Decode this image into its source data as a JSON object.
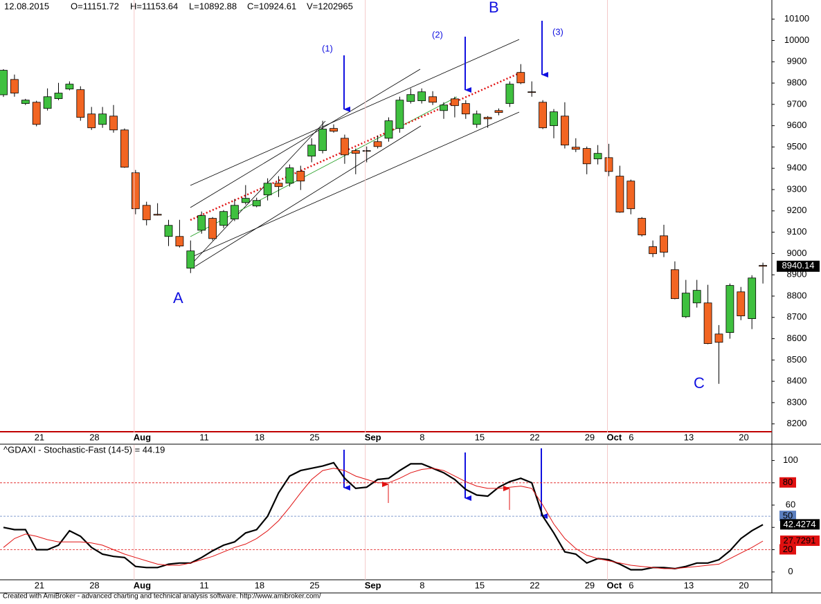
{
  "header": {
    "date": "12.08.2015",
    "open": "O=11151.72",
    "high": "H=11153.64",
    "low": "L=10892.88",
    "close": "C=10924.61",
    "volume": "V=1202965"
  },
  "footer": "Created with AmiBroker - advanced charting and technical analysis software. http://www.amibroker.com/",
  "chart_data": [
    {
      "type": "candlestick",
      "categories": [
        null,
        null,
        null,
        "21",
        null,
        null,
        null,
        null,
        "28",
        null,
        null,
        null,
        "Aug",
        null,
        null,
        null,
        null,
        null,
        "11",
        null,
        null,
        null,
        null,
        "18",
        null,
        null,
        null,
        null,
        "25",
        null,
        null,
        null,
        null,
        "Sep",
        null,
        null,
        null,
        null,
        "8",
        null,
        null,
        null,
        null,
        "15",
        null,
        null,
        null,
        null,
        "22",
        null,
        null,
        null,
        null,
        "29",
        null,
        "Oct",
        null,
        "6",
        null,
        null,
        null,
        null,
        "13",
        null,
        null,
        null,
        null,
        "20",
        null,
        null
      ],
      "open": [
        9745,
        9817,
        9704,
        9710,
        9681,
        9727,
        9772,
        9769,
        9655,
        9606,
        9645,
        9580,
        9379,
        9226,
        9184,
        9080,
        9080,
        8931,
        9109,
        9165,
        9132,
        9162,
        9239,
        9223,
        9275,
        9330,
        9330,
        9386,
        9457,
        9483,
        9587,
        9541,
        9483,
        9483,
        9525,
        9541,
        9587,
        9714,
        9717,
        9736,
        9671,
        9726,
        9704,
        9606,
        9639,
        9671,
        9704,
        9850,
        9759,
        9710,
        9600,
        9645,
        9499,
        9493,
        9444,
        9450,
        9363,
        9340,
        9165,
        9032,
        9083,
        8924,
        8703,
        8768,
        8768,
        8622,
        8629,
        8820,
        8694,
        8944
      ],
      "high": [
        9865,
        9840,
        9726,
        9717,
        9775,
        9801,
        9808,
        9785,
        9688,
        9688,
        9697,
        9587,
        9392,
        9243,
        9236,
        9158,
        9158,
        9061,
        9197,
        9171,
        9204,
        9256,
        9321,
        9262,
        9353,
        9363,
        9418,
        9412,
        9541,
        9623,
        9606,
        9558,
        9493,
        9502,
        9554,
        9639,
        9736,
        9775,
        9775,
        9762,
        9710,
        9736,
        9720,
        9671,
        9645,
        9681,
        9808,
        9889,
        9808,
        9720,
        9678,
        9710,
        9541,
        9502,
        9509,
        9515,
        9412,
        9347,
        9171,
        9061,
        9135,
        8963,
        8876,
        8876,
        8853,
        8664,
        8859,
        8843,
        8898,
        8957
      ],
      "low": [
        9735,
        9736,
        9697,
        9597,
        9671,
        9720,
        9766,
        9623,
        9580,
        9590,
        9567,
        9402,
        9184,
        9132,
        9178,
        9035,
        9028,
        8908,
        9093,
        9061,
        9119,
        9152,
        9230,
        9217,
        9249,
        9265,
        9314,
        9298,
        9428,
        9470,
        9567,
        9421,
        9372,
        9428,
        9493,
        9525,
        9567,
        9704,
        9704,
        9697,
        9632,
        9639,
        9632,
        9590,
        9590,
        9649,
        9688,
        9795,
        9736,
        9584,
        9541,
        9493,
        9476,
        9372,
        9418,
        9363,
        9191,
        9184,
        9080,
        8983,
        8983,
        8785,
        8697,
        8746,
        8574,
        8388,
        8600,
        8687,
        8645,
        8859
      ],
      "close": [
        9860,
        9753,
        9720,
        9606,
        9736,
        9753,
        9795,
        9639,
        9590,
        9655,
        9580,
        9405,
        9210,
        9158,
        9180,
        9132,
        9035,
        9012,
        9178,
        9070,
        9197,
        9226,
        9259,
        9249,
        9330,
        9314,
        9402,
        9340,
        9509,
        9584,
        9574,
        9463,
        9470,
        9480,
        9502,
        9623,
        9720,
        9746,
        9759,
        9710,
        9697,
        9694,
        9655,
        9655,
        9632,
        9662,
        9795,
        9801,
        9757,
        9590,
        9665,
        9509,
        9489,
        9421,
        9470,
        9385,
        9194,
        9210,
        9087,
        8999,
        9006,
        8788,
        8814,
        8827,
        8577,
        8583,
        8850,
        8707,
        8885,
        8940.14
      ],
      "up_color": "#3fc03f",
      "down_color": "#f26522",
      "ylim": [
        8160,
        10190
      ],
      "yticks": [
        8200,
        8300,
        8400,
        8500,
        8600,
        8700,
        8800,
        8900,
        9000,
        9100,
        9200,
        9300,
        9400,
        9500,
        9600,
        9700,
        9800,
        9900,
        10000,
        10100
      ],
      "annotations": [
        "A",
        "B",
        "C",
        "(1)",
        "(2)",
        "(3)"
      ]
    },
    {
      "type": "line",
      "title": "^GDAXI - Stochastic-Fast (14-5) = 44.19",
      "categories": [
        null,
        null,
        null,
        "21",
        null,
        null,
        null,
        null,
        "28",
        null,
        null,
        null,
        "Aug",
        null,
        null,
        null,
        null,
        null,
        "11",
        null,
        null,
        null,
        null,
        "18",
        null,
        null,
        null,
        null,
        "25",
        null,
        null,
        null,
        null,
        "Sep",
        null,
        null,
        null,
        null,
        "8",
        null,
        null,
        null,
        null,
        "15",
        null,
        null,
        null,
        null,
        "22",
        null,
        null,
        null,
        null,
        "29",
        null,
        "Oct",
        null,
        "6",
        null,
        null,
        null,
        null,
        "13",
        null,
        null,
        null,
        null,
        "20",
        null,
        null
      ],
      "series": [
        {
          "color": "#000000",
          "values": [
            40,
            38,
            38,
            20,
            20,
            24,
            37,
            32,
            22,
            16,
            14,
            13,
            5,
            4,
            4,
            7,
            8,
            8,
            13,
            19,
            24,
            27,
            35,
            38,
            50,
            71,
            86,
            91,
            93,
            95,
            98,
            84,
            75,
            76,
            83,
            84,
            91,
            97,
            97,
            93,
            89,
            83,
            74,
            69,
            68,
            76,
            81,
            84,
            80,
            50,
            35,
            18,
            16,
            8,
            12,
            11,
            7,
            2,
            2,
            4,
            4,
            3,
            5,
            8,
            8,
            11,
            19,
            30,
            37,
            42.4274
          ]
        },
        {
          "color": "#e01010",
          "values": [
            22,
            30,
            34,
            32,
            29,
            27,
            27,
            27,
            26,
            24,
            20,
            16,
            13,
            10,
            7,
            6,
            6,
            8,
            11,
            14,
            18,
            22,
            25,
            30,
            37,
            46,
            58,
            71,
            83,
            91,
            93,
            91,
            86,
            83,
            80,
            80,
            84,
            89,
            92,
            93,
            91,
            86,
            81,
            77,
            75,
            75,
            76,
            77,
            75,
            60,
            43,
            30,
            21,
            15,
            12,
            10,
            8,
            6,
            5,
            4,
            3,
            3,
            4,
            5,
            6,
            7,
            12,
            17,
            22,
            27.7291
          ]
        }
      ],
      "levels": [
        {
          "value": 80,
          "color": "#e01010"
        },
        {
          "value": 50,
          "color": "#5b7fbf"
        },
        {
          "value": 20,
          "color": "#e01010"
        }
      ],
      "ylim": [
        -7,
        114
      ],
      "yticks": [
        0,
        20,
        40,
        60,
        80,
        100
      ]
    }
  ]
}
